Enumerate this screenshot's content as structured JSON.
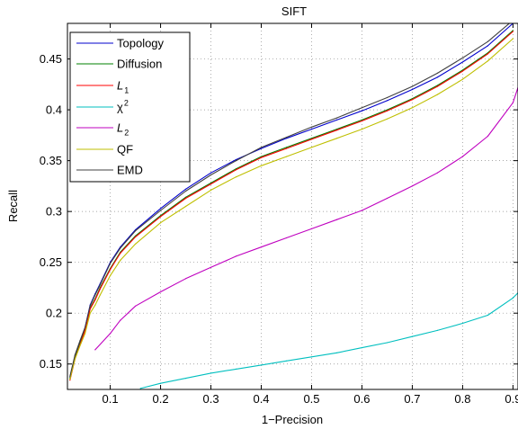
{
  "chart_data": {
    "type": "line",
    "title": "SIFT",
    "xlabel": "1−Precision",
    "ylabel": "Recall",
    "xlim": [
      0.015,
      0.91
    ],
    "ylim": [
      0.125,
      0.485
    ],
    "xticks": [
      0.1,
      0.2,
      0.3,
      0.4,
      0.5,
      0.6,
      0.7,
      0.8,
      0.9
    ],
    "xtick_labels": [
      "0.1",
      "0.2",
      "0.3",
      "0.4",
      "0.5",
      "0.6",
      "0.7",
      "0.8",
      "0.9"
    ],
    "yticks": [
      0.15,
      0.2,
      0.25,
      0.3,
      0.35,
      0.4,
      0.45
    ],
    "ytick_labels": [
      "0.15",
      "0.2",
      "0.25",
      "0.3",
      "0.35",
      "0.4",
      "0.45"
    ],
    "grid": true,
    "legend_position": "top-left",
    "series": [
      {
        "name": "Topology",
        "label_main": "Topology",
        "label_sub": "",
        "label_sup": "",
        "color": "#0000cc",
        "x": [
          0.02,
          0.03,
          0.04,
          0.05,
          0.06,
          0.07,
          0.08,
          0.1,
          0.12,
          0.15,
          0.2,
          0.25,
          0.3,
          0.35,
          0.4,
          0.45,
          0.5,
          0.55,
          0.6,
          0.65,
          0.7,
          0.75,
          0.8,
          0.85,
          0.9
        ],
        "y": [
          0.137,
          0.158,
          0.172,
          0.186,
          0.208,
          0.219,
          0.229,
          0.25,
          0.265,
          0.282,
          0.303,
          0.322,
          0.338,
          0.351,
          0.362,
          0.372,
          0.381,
          0.39,
          0.399,
          0.409,
          0.42,
          0.432,
          0.447,
          0.463,
          0.485
        ]
      },
      {
        "name": "Diffusion",
        "label_main": "Diffusion",
        "label_sub": "",
        "label_sup": "",
        "color": "#008000",
        "x": [
          0.02,
          0.03,
          0.04,
          0.05,
          0.06,
          0.07,
          0.08,
          0.1,
          0.12,
          0.15,
          0.2,
          0.25,
          0.3,
          0.35,
          0.4,
          0.45,
          0.5,
          0.55,
          0.6,
          0.65,
          0.7,
          0.75,
          0.8,
          0.85,
          0.9
        ],
        "y": [
          0.136,
          0.156,
          0.17,
          0.184,
          0.205,
          0.214,
          0.225,
          0.244,
          0.26,
          0.276,
          0.296,
          0.314,
          0.328,
          0.342,
          0.354,
          0.363,
          0.372,
          0.381,
          0.39,
          0.4,
          0.411,
          0.424,
          0.439,
          0.456,
          0.478
        ]
      },
      {
        "name": "L1",
        "label_main": "L",
        "label_sub": "1",
        "label_sup": "",
        "color": "#ff0000",
        "x": [
          0.02,
          0.03,
          0.04,
          0.05,
          0.06,
          0.07,
          0.08,
          0.1,
          0.12,
          0.15,
          0.2,
          0.25,
          0.3,
          0.35,
          0.4,
          0.45,
          0.5,
          0.55,
          0.6,
          0.65,
          0.7,
          0.75,
          0.8,
          0.85,
          0.9
        ],
        "y": [
          0.134,
          0.155,
          0.169,
          0.183,
          0.204,
          0.213,
          0.224,
          0.243,
          0.259,
          0.275,
          0.295,
          0.313,
          0.327,
          0.341,
          0.353,
          0.362,
          0.371,
          0.38,
          0.389,
          0.399,
          0.41,
          0.423,
          0.438,
          0.455,
          0.477
        ]
      },
      {
        "name": "χ2",
        "label_main": "χ",
        "label_sub": "",
        "label_sup": "2",
        "color": "#00bfbf",
        "x": [
          0.16,
          0.2,
          0.25,
          0.3,
          0.35,
          0.4,
          0.45,
          0.5,
          0.55,
          0.6,
          0.65,
          0.7,
          0.75,
          0.8,
          0.85,
          0.9,
          0.91
        ],
        "y": [
          0.126,
          0.131,
          0.136,
          0.141,
          0.145,
          0.149,
          0.153,
          0.157,
          0.161,
          0.166,
          0.171,
          0.177,
          0.183,
          0.19,
          0.198,
          0.215,
          0.22
        ]
      },
      {
        "name": "L2",
        "label_main": "L",
        "label_sub": "2",
        "label_sup": "",
        "color": "#bf00bf",
        "x": [
          0.07,
          0.1,
          0.12,
          0.15,
          0.2,
          0.25,
          0.3,
          0.35,
          0.4,
          0.45,
          0.5,
          0.55,
          0.6,
          0.65,
          0.7,
          0.75,
          0.8,
          0.85,
          0.9,
          0.91
        ],
        "y": [
          0.164,
          0.18,
          0.193,
          0.207,
          0.221,
          0.234,
          0.245,
          0.256,
          0.265,
          0.274,
          0.283,
          0.292,
          0.301,
          0.313,
          0.325,
          0.338,
          0.354,
          0.374,
          0.407,
          0.422
        ]
      },
      {
        "name": "QF",
        "label_main": "QF",
        "label_sub": "",
        "label_sup": "",
        "color": "#bfbf00",
        "x": [
          0.02,
          0.03,
          0.04,
          0.05,
          0.06,
          0.07,
          0.08,
          0.1,
          0.12,
          0.15,
          0.2,
          0.25,
          0.3,
          0.35,
          0.4,
          0.45,
          0.5,
          0.55,
          0.6,
          0.65,
          0.7,
          0.75,
          0.8,
          0.85,
          0.9
        ],
        "y": [
          0.135,
          0.155,
          0.168,
          0.18,
          0.2,
          0.208,
          0.218,
          0.237,
          0.252,
          0.268,
          0.289,
          0.305,
          0.321,
          0.334,
          0.345,
          0.354,
          0.363,
          0.372,
          0.381,
          0.391,
          0.402,
          0.415,
          0.43,
          0.448,
          0.47
        ]
      },
      {
        "name": "EMD",
        "label_main": "EMD",
        "label_sub": "",
        "label_sup": "",
        "color": "#404040",
        "x": [
          0.02,
          0.03,
          0.04,
          0.05,
          0.06,
          0.07,
          0.08,
          0.1,
          0.12,
          0.15,
          0.2,
          0.25,
          0.3,
          0.35,
          0.4,
          0.45,
          0.5,
          0.55,
          0.6,
          0.65,
          0.7,
          0.75,
          0.8,
          0.85,
          0.9
        ],
        "y": [
          0.138,
          0.159,
          0.173,
          0.186,
          0.207,
          0.218,
          0.228,
          0.249,
          0.264,
          0.281,
          0.301,
          0.32,
          0.336,
          0.35,
          0.363,
          0.373,
          0.383,
          0.392,
          0.402,
          0.412,
          0.423,
          0.436,
          0.451,
          0.467,
          0.488
        ]
      }
    ]
  }
}
